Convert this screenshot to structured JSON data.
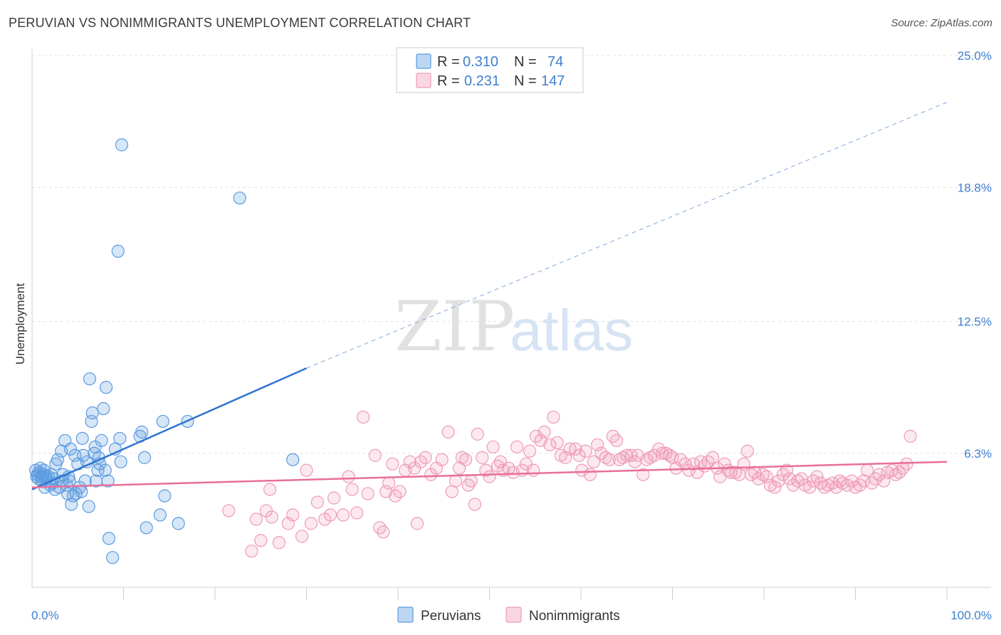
{
  "header": {
    "title": "PERUVIAN VS NONIMMIGRANTS UNEMPLOYMENT CORRELATION CHART",
    "source": "Source: ZipAtlas.com"
  },
  "watermark": {
    "zip": "ZIP",
    "atlas": "atlas"
  },
  "chart_data": {
    "type": "scatter",
    "title": "PERUVIAN VS NONIMMIGRANTS UNEMPLOYMENT CORRELATION CHART",
    "xlabel": "",
    "ylabel": "Unemployment",
    "xlim": [
      0,
      100
    ],
    "ylim": [
      0,
      25.0
    ],
    "x_tick_labels": [
      "0.0%",
      "100.0%"
    ],
    "y_ticks": [
      6.3,
      12.5,
      18.8,
      25.0
    ],
    "y_tick_labels": [
      "6.3%",
      "12.5%",
      "18.8%",
      "25.0%"
    ],
    "grid": true,
    "legend_position": "top-center",
    "colors": {
      "peruvians": "#5b9be0",
      "nonimmigrants": "#f19bb7",
      "peru_line": "#2f74d0",
      "non_line": "#e86f98"
    },
    "legend": [
      {
        "r_label": "R =",
        "r_value": "0.310",
        "n_label": "N =",
        "n_value": "74"
      },
      {
        "r_label": "R =",
        "r_value": "0.231",
        "n_label": "N =",
        "n_value": "147"
      }
    ],
    "series": [
      {
        "name": "Peruvians",
        "trend": {
          "x0": 0,
          "y0": 4.6,
          "x1": 30,
          "y1": 10.3,
          "dash_x1": 100,
          "dash_y1": 22.8
        },
        "points": [
          [
            0.4,
            5.5
          ],
          [
            0.5,
            5.2
          ],
          [
            0.6,
            5.3
          ],
          [
            0.7,
            5.1
          ],
          [
            0.8,
            5.4
          ],
          [
            0.9,
            5.6
          ],
          [
            1.0,
            5.2
          ],
          [
            1.1,
            5.0
          ],
          [
            1.2,
            5.3
          ],
          [
            1.3,
            5.5
          ],
          [
            1.4,
            4.7
          ],
          [
            1.5,
            5.2
          ],
          [
            1.6,
            5.1
          ],
          [
            1.8,
            5.2
          ],
          [
            2.0,
            4.8
          ],
          [
            2.1,
            5.3
          ],
          [
            2.2,
            4.9
          ],
          [
            2.4,
            5.1
          ],
          [
            2.5,
            4.6
          ],
          [
            2.6,
            5.8
          ],
          [
            2.8,
            6.0
          ],
          [
            3.0,
            4.7
          ],
          [
            3.2,
            6.4
          ],
          [
            3.3,
            5.0
          ],
          [
            3.4,
            5.3
          ],
          [
            3.6,
            6.9
          ],
          [
            3.8,
            4.8
          ],
          [
            3.9,
            4.4
          ],
          [
            4.0,
            5.2
          ],
          [
            4.1,
            5.0
          ],
          [
            4.2,
            6.5
          ],
          [
            4.3,
            3.9
          ],
          [
            4.5,
            4.3
          ],
          [
            4.7,
            6.2
          ],
          [
            4.8,
            4.4
          ],
          [
            5.0,
            5.8
          ],
          [
            5.2,
            4.7
          ],
          [
            5.4,
            4.5
          ],
          [
            5.5,
            7.0
          ],
          [
            5.6,
            6.2
          ],
          [
            5.8,
            5.0
          ],
          [
            6.0,
            5.9
          ],
          [
            6.2,
            3.8
          ],
          [
            6.3,
            9.8
          ],
          [
            6.5,
            7.8
          ],
          [
            6.6,
            8.2
          ],
          [
            6.8,
            6.3
          ],
          [
            6.9,
            6.6
          ],
          [
            7.0,
            5.0
          ],
          [
            7.2,
            5.5
          ],
          [
            7.3,
            6.1
          ],
          [
            7.4,
            5.8
          ],
          [
            7.6,
            6.9
          ],
          [
            7.8,
            8.4
          ],
          [
            8.0,
            5.5
          ],
          [
            8.1,
            9.4
          ],
          [
            8.3,
            5.0
          ],
          [
            8.4,
            2.3
          ],
          [
            8.8,
            1.4
          ],
          [
            9.1,
            6.5
          ],
          [
            9.4,
            15.8
          ],
          [
            9.6,
            7.0
          ],
          [
            9.7,
            5.9
          ],
          [
            9.8,
            20.8
          ],
          [
            11.8,
            7.1
          ],
          [
            12.0,
            7.3
          ],
          [
            12.3,
            6.1
          ],
          [
            12.5,
            2.8
          ],
          [
            14.0,
            3.4
          ],
          [
            14.3,
            7.8
          ],
          [
            14.5,
            4.3
          ],
          [
            16.0,
            3.0
          ],
          [
            17.0,
            7.8
          ],
          [
            22.7,
            18.3
          ],
          [
            28.5,
            6.0
          ]
        ]
      },
      {
        "name": "Nonimmigrants",
        "trend": {
          "x0": 0,
          "y0": 4.7,
          "x1": 100,
          "y1": 5.9
        },
        "points": [
          [
            21.5,
            3.6
          ],
          [
            24.0,
            1.7
          ],
          [
            24.5,
            3.2
          ],
          [
            25.0,
            2.2
          ],
          [
            25.6,
            3.6
          ],
          [
            26.0,
            4.6
          ],
          [
            26.2,
            3.3
          ],
          [
            27.0,
            2.1
          ],
          [
            28.0,
            3.0
          ],
          [
            28.5,
            3.4
          ],
          [
            29.5,
            2.4
          ],
          [
            30.0,
            5.5
          ],
          [
            30.5,
            3.0
          ],
          [
            31.2,
            4.0
          ],
          [
            32.0,
            3.2
          ],
          [
            32.6,
            3.4
          ],
          [
            33.0,
            4.2
          ],
          [
            34.0,
            3.4
          ],
          [
            34.6,
            5.2
          ],
          [
            35.0,
            4.6
          ],
          [
            35.5,
            3.5
          ],
          [
            36.2,
            8.0
          ],
          [
            36.7,
            4.4
          ],
          [
            37.5,
            6.2
          ],
          [
            38.0,
            2.8
          ],
          [
            38.4,
            2.6
          ],
          [
            38.7,
            4.5
          ],
          [
            39.0,
            4.9
          ],
          [
            39.4,
            5.8
          ],
          [
            39.7,
            4.3
          ],
          [
            40.2,
            4.5
          ],
          [
            40.8,
            5.5
          ],
          [
            41.3,
            5.9
          ],
          [
            41.8,
            5.6
          ],
          [
            42.1,
            3.0
          ],
          [
            42.5,
            5.9
          ],
          [
            43.0,
            6.1
          ],
          [
            43.6,
            5.3
          ],
          [
            44.2,
            5.6
          ],
          [
            44.8,
            6.0
          ],
          [
            45.5,
            7.3
          ],
          [
            45.9,
            4.5
          ],
          [
            46.3,
            5.0
          ],
          [
            46.7,
            5.6
          ],
          [
            47.0,
            6.1
          ],
          [
            47.4,
            6.0
          ],
          [
            47.7,
            4.8
          ],
          [
            48.0,
            5.0
          ],
          [
            48.4,
            3.9
          ],
          [
            48.7,
            7.2
          ],
          [
            49.2,
            6.1
          ],
          [
            49.6,
            5.5
          ],
          [
            50.0,
            5.2
          ],
          [
            50.4,
            6.6
          ],
          [
            50.9,
            5.7
          ],
          [
            51.2,
            5.9
          ],
          [
            51.5,
            5.5
          ],
          [
            52.1,
            5.6
          ],
          [
            52.6,
            5.4
          ],
          [
            53.0,
            6.6
          ],
          [
            53.6,
            5.5
          ],
          [
            54.0,
            5.8
          ],
          [
            54.4,
            6.4
          ],
          [
            54.8,
            5.5
          ],
          [
            55.1,
            7.1
          ],
          [
            55.6,
            6.9
          ],
          [
            56.0,
            7.3
          ],
          [
            56.6,
            6.7
          ],
          [
            57.0,
            8.0
          ],
          [
            57.4,
            6.8
          ],
          [
            57.8,
            6.2
          ],
          [
            58.3,
            6.1
          ],
          [
            58.8,
            6.5
          ],
          [
            59.4,
            6.5
          ],
          [
            59.8,
            6.2
          ],
          [
            60.1,
            5.5
          ],
          [
            60.5,
            6.4
          ],
          [
            61.0,
            5.3
          ],
          [
            61.4,
            5.9
          ],
          [
            61.8,
            6.7
          ],
          [
            62.2,
            6.3
          ],
          [
            62.7,
            6.1
          ],
          [
            63.1,
            6.0
          ],
          [
            63.5,
            7.1
          ],
          [
            63.9,
            6.9
          ],
          [
            64.2,
            6.0
          ],
          [
            64.6,
            6.1
          ],
          [
            65.0,
            6.2
          ],
          [
            65.5,
            6.2
          ],
          [
            65.9,
            5.9
          ],
          [
            66.2,
            6.2
          ],
          [
            66.8,
            5.3
          ],
          [
            67.2,
            6.0
          ],
          [
            67.6,
            6.1
          ],
          [
            68.0,
            6.2
          ],
          [
            68.5,
            6.5
          ],
          [
            68.9,
            6.3
          ],
          [
            69.3,
            6.3
          ],
          [
            69.7,
            6.2
          ],
          [
            70.0,
            6.1
          ],
          [
            70.4,
            5.6
          ],
          [
            70.9,
            6.0
          ],
          [
            71.4,
            5.8
          ],
          [
            71.8,
            5.5
          ],
          [
            72.3,
            5.8
          ],
          [
            72.7,
            5.4
          ],
          [
            73.1,
            5.9
          ],
          [
            73.5,
            5.7
          ],
          [
            73.9,
            5.9
          ],
          [
            74.4,
            6.1
          ],
          [
            74.9,
            5.6
          ],
          [
            75.2,
            5.2
          ],
          [
            75.7,
            5.8
          ],
          [
            76.1,
            5.5
          ],
          [
            76.4,
            5.4
          ],
          [
            76.9,
            5.4
          ],
          [
            77.3,
            5.3
          ],
          [
            77.8,
            5.8
          ],
          [
            78.2,
            6.4
          ],
          [
            78.6,
            5.3
          ],
          [
            79.0,
            5.4
          ],
          [
            79.4,
            5.1
          ],
          [
            79.9,
            5.3
          ],
          [
            80.3,
            5.2
          ],
          [
            80.7,
            4.8
          ],
          [
            81.2,
            4.7
          ],
          [
            81.6,
            5.0
          ],
          [
            82.1,
            5.3
          ],
          [
            82.5,
            5.5
          ],
          [
            82.8,
            5.1
          ],
          [
            83.2,
            4.8
          ],
          [
            83.7,
            5.0
          ],
          [
            84.1,
            5.1
          ],
          [
            84.5,
            4.8
          ],
          [
            85.0,
            4.7
          ],
          [
            85.4,
            5.0
          ],
          [
            85.8,
            5.2
          ],
          [
            86.2,
            4.9
          ],
          [
            86.6,
            4.7
          ],
          [
            87.0,
            4.8
          ],
          [
            87.5,
            4.9
          ],
          [
            87.9,
            4.7
          ],
          [
            88.3,
            5.0
          ],
          [
            88.6,
            4.9
          ],
          [
            89.1,
            4.8
          ],
          [
            89.6,
            5.0
          ],
          [
            90.0,
            4.7
          ],
          [
            90.5,
            4.8
          ],
          [
            90.9,
            5.0
          ],
          [
            91.3,
            5.5
          ],
          [
            91.8,
            4.9
          ],
          [
            92.2,
            5.1
          ],
          [
            92.6,
            5.3
          ],
          [
            93.1,
            5.0
          ],
          [
            93.5,
            5.4
          ],
          [
            94.0,
            5.5
          ],
          [
            94.4,
            5.3
          ],
          [
            94.8,
            5.4
          ],
          [
            95.2,
            5.6
          ],
          [
            95.6,
            5.8
          ],
          [
            96.0,
            7.1
          ]
        ]
      }
    ]
  },
  "bottom_legend": {
    "peruvians": "Peruvians",
    "nonimmigrants": "Nonimmigrants"
  }
}
